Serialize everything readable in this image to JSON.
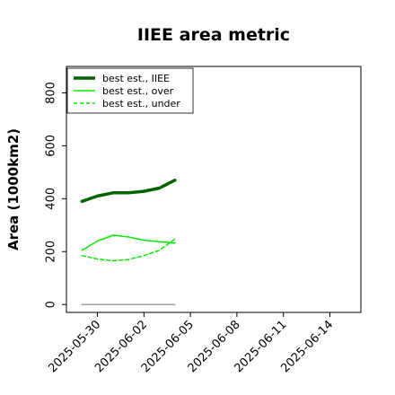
{
  "chart_data": {
    "type": "line",
    "title": "IIEE area metric",
    "xlabel": "",
    "ylabel": "Area (1000km2)",
    "x_axis": "date",
    "xlim": [
      "2025-05-28",
      "2025-06-16"
    ],
    "ylim": [
      -30,
      900
    ],
    "x_ticks": [
      "2025-05-30",
      "2025-06-02",
      "2025-06-05",
      "2025-06-08",
      "2025-06-11",
      "2025-06-14"
    ],
    "y_ticks": [
      0,
      200,
      400,
      600,
      800
    ],
    "grid": false,
    "legend": "top-left",
    "series": [
      {
        "name": "best est., IIEE",
        "color": "#006400",
        "style": "solid",
        "x": [
          "2025-05-29",
          "2025-05-30",
          "2025-05-31",
          "2025-06-01",
          "2025-06-02",
          "2025-06-03",
          "2025-06-04"
        ],
        "values": [
          390,
          410,
          422,
          422,
          428,
          440,
          470
        ]
      },
      {
        "name": "best est., over",
        "color": "#00ee00",
        "style": "solid",
        "x": [
          "2025-05-29",
          "2025-05-30",
          "2025-05-31",
          "2025-06-01",
          "2025-06-02",
          "2025-06-03",
          "2025-06-04"
        ],
        "values": [
          205,
          240,
          262,
          255,
          243,
          237,
          232
        ]
      },
      {
        "name": "best est., under",
        "color": "#00ee00",
        "style": "dashed",
        "x": [
          "2025-05-29",
          "2025-05-30",
          "2025-05-31",
          "2025-06-01",
          "2025-06-02",
          "2025-06-03",
          "2025-06-04"
        ],
        "values": [
          185,
          172,
          165,
          170,
          185,
          205,
          248
        ]
      },
      {
        "name": "",
        "color": "#808080",
        "style": "solid",
        "x": [
          "2025-05-29",
          "2025-06-04"
        ],
        "values": [
          0,
          0
        ]
      }
    ]
  }
}
